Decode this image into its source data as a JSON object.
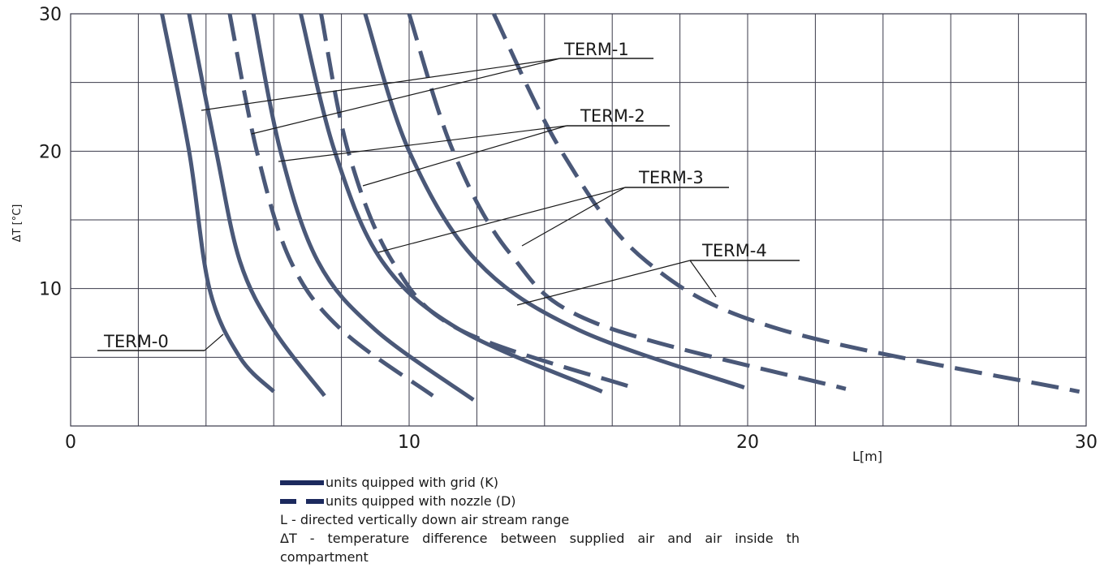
{
  "chart_data": {
    "type": "line",
    "xlabel": "L[m]",
    "ylabel": "ΔT [°C]",
    "xlim": [
      0,
      30
    ],
    "ylim": [
      0,
      30
    ],
    "x_ticks": [
      "0",
      "10",
      "20",
      "30"
    ],
    "y_ticks": [
      "10",
      "20",
      "30"
    ],
    "grid": true,
    "series": [
      {
        "name": "TERM-0",
        "style": "solid",
        "points": [
          [
            2.7,
            30
          ],
          [
            3.5,
            20
          ],
          [
            4.1,
            10
          ],
          [
            5.0,
            5
          ],
          [
            6.0,
            2.5
          ]
        ]
      },
      {
        "name": "TERM-1",
        "style": "solid",
        "points": [
          [
            3.5,
            30
          ],
          [
            4.3,
            20
          ],
          [
            5.0,
            12
          ],
          [
            6.0,
            7
          ],
          [
            7.5,
            2.2
          ]
        ]
      },
      {
        "name": "TERM-1",
        "style": "dashed",
        "points": [
          [
            4.7,
            30
          ],
          [
            5.5,
            20
          ],
          [
            6.5,
            12
          ],
          [
            8.0,
            7
          ],
          [
            10.7,
            2.2
          ]
        ]
      },
      {
        "name": "TERM-2",
        "style": "solid",
        "points": [
          [
            5.4,
            30
          ],
          [
            6.2,
            20
          ],
          [
            7.3,
            12
          ],
          [
            9.0,
            7
          ],
          [
            11.9,
            1.9
          ]
        ]
      },
      {
        "name": "TERM-2",
        "style": "dashed",
        "points": [
          [
            7.4,
            30
          ],
          [
            8.2,
            20
          ],
          [
            9.5,
            12
          ],
          [
            11.5,
            7
          ],
          [
            16.6,
            2.8
          ]
        ]
      },
      {
        "name": "TERM-3",
        "style": "solid",
        "points": [
          [
            6.8,
            30
          ],
          [
            7.8,
            20
          ],
          [
            9.2,
            12
          ],
          [
            11.5,
            7
          ],
          [
            15.7,
            2.5
          ]
        ]
      },
      {
        "name": "TERM-3",
        "style": "dashed",
        "points": [
          [
            10.0,
            30
          ],
          [
            11.3,
            20
          ],
          [
            13.0,
            12.5
          ],
          [
            15.5,
            7.5
          ],
          [
            22.9,
            2.7
          ]
        ]
      },
      {
        "name": "TERM-4",
        "style": "solid",
        "points": [
          [
            8.7,
            30
          ],
          [
            10.0,
            20
          ],
          [
            12.0,
            12
          ],
          [
            15.0,
            7
          ],
          [
            19.9,
            2.8
          ]
        ]
      },
      {
        "name": "TERM-4",
        "style": "dashed",
        "points": [
          [
            12.5,
            30
          ],
          [
            14.5,
            20
          ],
          [
            17.0,
            12
          ],
          [
            21.0,
            7
          ],
          [
            29.8,
            2.5
          ]
        ]
      }
    ],
    "callouts": [
      {
        "label": "TERM-0"
      },
      {
        "label": "TERM-1"
      },
      {
        "label": "TERM-2"
      },
      {
        "label": "TERM-3"
      },
      {
        "label": "TERM-4"
      }
    ]
  },
  "legend": {
    "solid_label": "units quipped with grid (K)",
    "dashed_label": "units quipped with nozzle (D)",
    "note_l": "L - directed vertically down air stream range",
    "note_dt": "ΔT - temperature difference between supplied air and air inside th compartment"
  },
  "colors": {
    "curve": "#4a5878",
    "grid": "#3a3a4a",
    "legend_line": "#1c2a5e"
  }
}
